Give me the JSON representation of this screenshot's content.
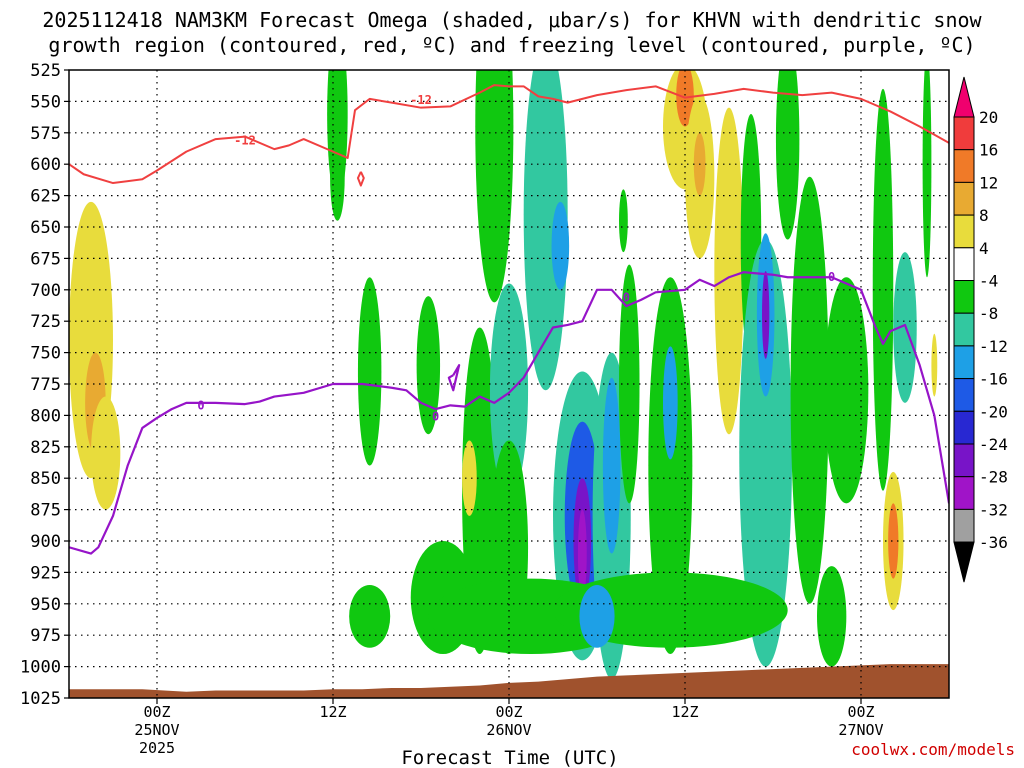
{
  "chart_data": {
    "type": "heatmap",
    "title_line1": "2025112418 NAM3KM Forecast Omega (shaded, μbar/s) for KHVN with dendritic snow",
    "title_line2": "growth region (contoured, red, ºC) and freezing level (contoured, purple, ºC)",
    "xlabel": "Forecast Time (UTC)",
    "ylabel": "",
    "credit": "coolwx.com/models",
    "y_axis": {
      "unit": "hPa",
      "ticks": [
        525,
        550,
        575,
        600,
        625,
        650,
        675,
        700,
        725,
        750,
        775,
        800,
        825,
        850,
        875,
        900,
        925,
        950,
        975,
        1000,
        1025
      ],
      "range": [
        525,
        1025
      ]
    },
    "x_axis": {
      "unit": "forecast hour",
      "range": [
        0,
        60
      ],
      "ticks": [
        {
          "hour": 6,
          "label1": "00Z",
          "label2": "25NOV",
          "label3": "2025"
        },
        {
          "hour": 18,
          "label1": "12Z",
          "label2": "",
          "label3": ""
        },
        {
          "hour": 30,
          "label1": "00Z",
          "label2": "26NOV",
          "label3": ""
        },
        {
          "hour": 42,
          "label1": "12Z",
          "label2": "",
          "label3": ""
        },
        {
          "hour": 54,
          "label1": "00Z",
          "label2": "27NOV",
          "label3": ""
        }
      ]
    },
    "colorbar": {
      "labels": [
        "20",
        "16",
        "12",
        "8",
        "4",
        "-4",
        "-8",
        "-12",
        "-16",
        "-20",
        "-24",
        "-28",
        "-32",
        "-36"
      ],
      "colors": [
        "#f0006e",
        "#f03c3c",
        "#f07a28",
        "#e8aa32",
        "#e8dc3c",
        "#ffffff",
        "#10c810",
        "#32c8a0",
        "#1ea0e6",
        "#1e5ae6",
        "#2828d2",
        "#7814c8",
        "#a014c8",
        "#a0a0a0",
        "#000000"
      ]
    },
    "contours": {
      "dgz_level_c": -12,
      "dgz_label": "-12",
      "freezing_level_c": 0,
      "freezing_label": "0",
      "dgz_minus12": [
        [
          0,
          600
        ],
        [
          1,
          608
        ],
        [
          3,
          615
        ],
        [
          5,
          612
        ],
        [
          6,
          605
        ],
        [
          8,
          590
        ],
        [
          10,
          580
        ],
        [
          12,
          578
        ],
        [
          14,
          588
        ],
        [
          15,
          585
        ],
        [
          16,
          580
        ],
        [
          18,
          590
        ],
        [
          19,
          595
        ],
        [
          19.5,
          557
        ],
        [
          20.5,
          548
        ],
        [
          22,
          551
        ],
        [
          24,
          555
        ],
        [
          26,
          554
        ],
        [
          28,
          543
        ],
        [
          29,
          537
        ],
        [
          30,
          538
        ],
        [
          31,
          538
        ],
        [
          32,
          546
        ],
        [
          33,
          548
        ],
        [
          34,
          551
        ],
        [
          36,
          545
        ],
        [
          38,
          541
        ],
        [
          40,
          538
        ],
        [
          42,
          547
        ],
        [
          44,
          544
        ],
        [
          46,
          540
        ],
        [
          48,
          543
        ],
        [
          50,
          545
        ],
        [
          52,
          543
        ],
        [
          54,
          548
        ],
        [
          56,
          558
        ],
        [
          58,
          570
        ],
        [
          60,
          583
        ]
      ],
      "dgz_minus12_closed": [
        [
          19.9,
          606
        ],
        [
          20.1,
          611
        ],
        [
          19.9,
          617
        ],
        [
          19.7,
          611
        ],
        [
          19.9,
          606
        ]
      ],
      "freezing_0": [
        [
          0,
          905
        ],
        [
          1.5,
          910
        ],
        [
          2,
          905
        ],
        [
          3,
          880
        ],
        [
          4,
          840
        ],
        [
          5,
          810
        ],
        [
          6,
          802
        ],
        [
          7,
          795
        ],
        [
          8,
          790
        ],
        [
          10,
          790
        ],
        [
          12,
          791
        ],
        [
          13,
          789
        ],
        [
          14,
          785
        ],
        [
          16,
          782
        ],
        [
          18,
          775
        ],
        [
          20,
          775
        ],
        [
          22,
          778
        ],
        [
          23,
          780
        ],
        [
          24,
          790
        ],
        [
          25,
          795
        ],
        [
          26,
          792
        ],
        [
          27,
          793
        ],
        [
          28,
          785
        ],
        [
          29,
          790
        ],
        [
          30,
          782
        ],
        [
          31,
          770
        ],
        [
          32,
          750
        ],
        [
          33,
          730
        ],
        [
          34,
          728
        ],
        [
          35,
          725
        ],
        [
          36,
          700
        ],
        [
          37,
          700
        ],
        [
          38,
          713
        ],
        [
          39,
          708
        ],
        [
          40,
          702
        ],
        [
          42,
          700
        ],
        [
          43,
          692
        ],
        [
          44,
          697
        ],
        [
          45,
          690
        ],
        [
          46,
          686
        ],
        [
          47,
          687
        ],
        [
          48,
          688
        ],
        [
          49,
          690
        ],
        [
          50,
          690
        ],
        [
          52,
          690
        ],
        [
          53,
          695
        ],
        [
          54,
          700
        ],
        [
          55,
          730
        ],
        [
          55.5,
          743
        ],
        [
          56,
          733
        ],
        [
          57,
          728
        ],
        [
          58,
          760
        ],
        [
          59,
          800
        ],
        [
          60,
          870
        ]
      ],
      "freezing_0_closed": [
        [
          26.2,
          768
        ],
        [
          26.6,
          760
        ],
        [
          26.2,
          780
        ],
        [
          25.9,
          770
        ],
        [
          26.2,
          768
        ]
      ]
    },
    "omega_cells": [
      {
        "hour": 1.5,
        "p": 740,
        "hw": 1.5,
        "hp": 110,
        "value": 5
      },
      {
        "hour": 1.8,
        "p": 790,
        "hw": 0.7,
        "hp": 40,
        "value": 9
      },
      {
        "hour": 2.5,
        "p": 830,
        "hw": 1.0,
        "hp": 45,
        "value": 5
      },
      {
        "hour": 18.3,
        "p": 560,
        "hw": 0.7,
        "hp": 70,
        "value": -5
      },
      {
        "hour": 18.3,
        "p": 610,
        "hw": 0.5,
        "hp": 35,
        "value": -5
      },
      {
        "hour": 20.5,
        "p": 765,
        "hw": 0.8,
        "hp": 75,
        "value": -6
      },
      {
        "hour": 20.5,
        "p": 960,
        "hw": 1.4,
        "hp": 25,
        "value": -5
      },
      {
        "hour": 24.5,
        "p": 760,
        "hw": 0.8,
        "hp": 55,
        "value": -6
      },
      {
        "hour": 25.5,
        "p": 945,
        "hw": 2.2,
        "hp": 45,
        "value": -6
      },
      {
        "hour": 28.0,
        "p": 860,
        "hw": 1.2,
        "hp": 130,
        "value": -7
      },
      {
        "hour": 27.3,
        "p": 850,
        "hw": 0.5,
        "hp": 30,
        "value": 6
      },
      {
        "hour": 29.0,
        "p": 570,
        "hw": 1.3,
        "hp": 140,
        "value": -6
      },
      {
        "hour": 30.0,
        "p": 780,
        "hw": 1.3,
        "hp": 85,
        "value": -10
      },
      {
        "hour": 30.0,
        "p": 905,
        "hw": 1.3,
        "hp": 85,
        "value": -7
      },
      {
        "hour": 32.5,
        "p": 640,
        "hw": 1.5,
        "hp": 140,
        "value": -8
      },
      {
        "hour": 33.5,
        "p": 665,
        "hw": 0.6,
        "hp": 35,
        "value": -12
      },
      {
        "hour": 35.0,
        "p": 880,
        "hw": 2.0,
        "hp": 115,
        "value": -10
      },
      {
        "hour": 35.0,
        "p": 880,
        "hw": 1.2,
        "hp": 75,
        "value": -16
      },
      {
        "hour": 35.0,
        "p": 900,
        "hw": 0.6,
        "hp": 50,
        "value": -24
      },
      {
        "hour": 35.0,
        "p": 910,
        "hw": 0.3,
        "hp": 35,
        "value": -28
      },
      {
        "hour": 37.0,
        "p": 880,
        "hw": 1.3,
        "hp": 130,
        "value": -9
      },
      {
        "hour": 37.0,
        "p": 840,
        "hw": 0.6,
        "hp": 70,
        "value": -14
      },
      {
        "hour": 38.2,
        "p": 775,
        "hw": 0.7,
        "hp": 95,
        "value": -6
      },
      {
        "hour": 37.8,
        "p": 645,
        "hw": 0.3,
        "hp": 25,
        "value": -5
      },
      {
        "hour": 41.0,
        "p": 840,
        "hw": 1.5,
        "hp": 150,
        "value": -7
      },
      {
        "hour": 41.0,
        "p": 790,
        "hw": 0.5,
        "hp": 45,
        "value": -13
      },
      {
        "hour": 42.0,
        "p": 570,
        "hw": 1.5,
        "hp": 50,
        "value": 7
      },
      {
        "hour": 42.0,
        "p": 545,
        "hw": 0.6,
        "hp": 25,
        "value": 12
      },
      {
        "hour": 43.0,
        "p": 610,
        "hw": 1.0,
        "hp": 65,
        "value": 6
      },
      {
        "hour": 43.0,
        "p": 600,
        "hw": 0.4,
        "hp": 25,
        "value": 9
      },
      {
        "hour": 45.0,
        "p": 685,
        "hw": 1.0,
        "hp": 130,
        "value": 5
      },
      {
        "hour": 46.5,
        "p": 660,
        "hw": 0.7,
        "hp": 100,
        "value": -6
      },
      {
        "hour": 47.5,
        "p": 830,
        "hw": 1.8,
        "hp": 170,
        "value": -8
      },
      {
        "hour": 47.5,
        "p": 720,
        "hw": 0.6,
        "hp": 65,
        "value": -15
      },
      {
        "hour": 47.5,
        "p": 720,
        "hw": 0.25,
        "hp": 35,
        "value": -25
      },
      {
        "hour": 49.0,
        "p": 580,
        "hw": 0.8,
        "hp": 80,
        "value": -5
      },
      {
        "hour": 50.5,
        "p": 780,
        "hw": 1.3,
        "hp": 170,
        "value": -6
      },
      {
        "hour": 53.0,
        "p": 780,
        "hw": 1.5,
        "hp": 90,
        "value": -6
      },
      {
        "hour": 52.0,
        "p": 960,
        "hw": 1.0,
        "hp": 40,
        "value": -6
      },
      {
        "hour": 55.5,
        "p": 700,
        "hw": 0.7,
        "hp": 160,
        "value": -6
      },
      {
        "hour": 57.0,
        "p": 730,
        "hw": 0.8,
        "hp": 60,
        "value": -10
      },
      {
        "hour": 56.2,
        "p": 900,
        "hw": 0.7,
        "hp": 55,
        "value": 6
      },
      {
        "hour": 56.2,
        "p": 900,
        "hw": 0.35,
        "hp": 30,
        "value": 13
      },
      {
        "hour": 58.5,
        "p": 600,
        "hw": 0.3,
        "hp": 90,
        "value": -5
      },
      {
        "hour": 59.0,
        "p": 760,
        "hw": 0.2,
        "hp": 25,
        "value": 6
      },
      {
        "hour": 31.5,
        "p": 960,
        "hw": 7.0,
        "hp": 30,
        "value": -6
      },
      {
        "hour": 41.0,
        "p": 955,
        "hw": 8.0,
        "hp": 30,
        "value": -6
      },
      {
        "hour": 36.0,
        "p": 960,
        "hw": 1.2,
        "hp": 25,
        "value": -12
      }
    ],
    "terrain_pressure": [
      [
        0,
        1018
      ],
      [
        5,
        1018
      ],
      [
        8,
        1020
      ],
      [
        10,
        1019
      ],
      [
        12,
        1019
      ],
      [
        14,
        1019
      ],
      [
        16,
        1019
      ],
      [
        18,
        1018
      ],
      [
        20,
        1018
      ],
      [
        22,
        1017
      ],
      [
        24,
        1017
      ],
      [
        26,
        1016
      ],
      [
        28,
        1015
      ],
      [
        30,
        1013
      ],
      [
        32,
        1012
      ],
      [
        34,
        1010
      ],
      [
        36,
        1008
      ],
      [
        38,
        1007
      ],
      [
        40,
        1006
      ],
      [
        42,
        1005
      ],
      [
        44,
        1004
      ],
      [
        46,
        1003
      ],
      [
        48,
        1002
      ],
      [
        50,
        1001
      ],
      [
        52,
        1000
      ],
      [
        54,
        999
      ],
      [
        56,
        998
      ],
      [
        58,
        998
      ],
      [
        60,
        998
      ]
    ],
    "terrain_color": "#a0522d",
    "colors": {
      "dgz_line": "#f04040",
      "freezing_line": "#9614c8",
      "grid": "#000000"
    }
  }
}
